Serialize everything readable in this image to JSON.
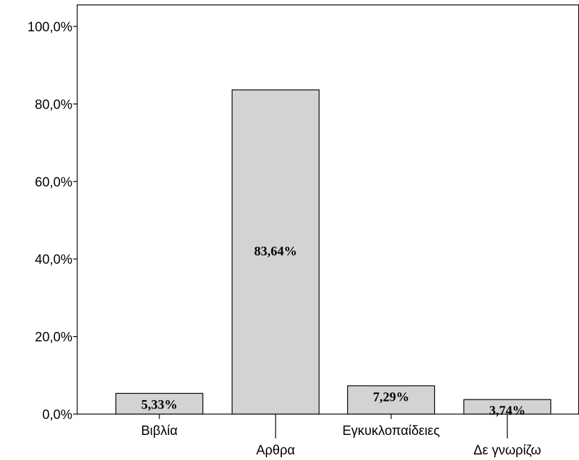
{
  "chart_data": {
    "type": "bar",
    "categories": [
      "Βιβλία",
      "Αρθρα",
      "Εγκυκλοπαίδειες",
      "Δε γνωρίζω"
    ],
    "values": [
      5.33,
      83.64,
      7.29,
      3.74
    ],
    "data_labels": [
      "5,33%",
      "83,64%",
      "7,29%",
      "3,74%"
    ],
    "ylim": [
      0,
      100
    ],
    "yticks": [
      0,
      20,
      40,
      60,
      80,
      100
    ],
    "ytick_labels": [
      "0,0%",
      "20,0%",
      "40,0%",
      "60,0%",
      "80,0%",
      "100,0%"
    ],
    "title": "",
    "xlabel": "",
    "ylabel": "",
    "grid": false,
    "bar_color": "#d3d3d3",
    "bar_edge_color": "#000000"
  }
}
